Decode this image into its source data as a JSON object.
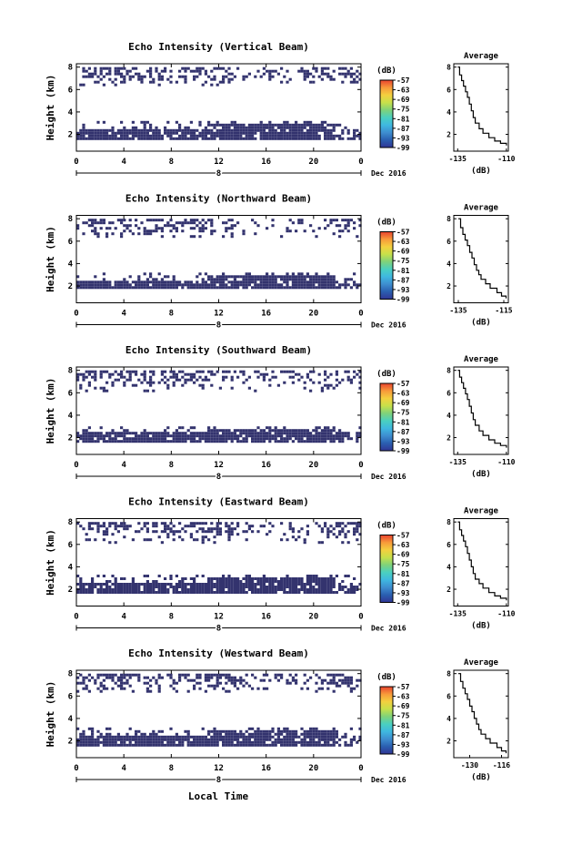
{
  "colors": {
    "echo": "#33336e",
    "axis": "#000000",
    "colorbar": [
      "#313695",
      "#2a5fb0",
      "#3e8ed0",
      "#3fb8e0",
      "#4ad0c0",
      "#7fd27a",
      "#c7e04a",
      "#f4d03f",
      "#f89a3a",
      "#e8432f"
    ]
  },
  "chart_data": [
    {
      "type": "heatmap",
      "title": "Echo Intensity (Vertical Beam)",
      "ylabel": "Height (km)",
      "x_ticks": [
        "0",
        "4",
        "8",
        "12",
        "16",
        "20",
        "0"
      ],
      "date_label": "8",
      "date_suffix": "Dec 2016",
      "y_ticks": [
        "8",
        "6",
        "4",
        "2"
      ],
      "xlim": [
        0,
        24
      ],
      "ylim": [
        0.5,
        8.3
      ],
      "colorbar_unit": "(dB)",
      "colorbar_labels": [
        "-57",
        "-63",
        "-69",
        "-75",
        "-81",
        "-87",
        "-93",
        "-99"
      ],
      "echo_layers": [
        {
          "y0": 1.7,
          "y1": 3.2,
          "x0": 0,
          "x1": 24
        },
        {
          "y0": 6.3,
          "y1": 8.0,
          "x0": 0,
          "x1": 24
        }
      ],
      "average": {
        "title": "Average",
        "xlabel": "(dB)",
        "x_ticks": [
          "-135",
          "-110"
        ],
        "y_ticks": [
          "8",
          "6",
          "4",
          "2"
        ],
        "xlim": [
          -137,
          -109
        ],
        "ylim": [
          0.5,
          8.3
        ],
        "x": [
          -135,
          -134,
          -133,
          -132,
          -131,
          -130,
          -129,
          -128,
          -127,
          -126,
          -124,
          -122,
          -119,
          -116,
          -113,
          -110
        ],
        "y": [
          8.0,
          7.3,
          6.8,
          6.3,
          5.8,
          5.3,
          4.7,
          4.1,
          3.5,
          3.0,
          2.5,
          2.1,
          1.7,
          1.4,
          1.2,
          1.0
        ]
      }
    },
    {
      "type": "heatmap",
      "title": "Echo Intensity (Northward Beam)",
      "ylabel": "Height (km)",
      "x_ticks": [
        "0",
        "4",
        "8",
        "12",
        "16",
        "20",
        "0"
      ],
      "date_label": "8",
      "date_suffix": "Dec 2016",
      "y_ticks": [
        "8",
        "6",
        "4",
        "2"
      ],
      "xlim": [
        0,
        24
      ],
      "ylim": [
        0.5,
        8.3
      ],
      "colorbar_unit": "(dB)",
      "colorbar_labels": [
        "-57",
        "-63",
        "-69",
        "-75",
        "-81",
        "-87",
        "-93",
        "-99"
      ],
      "echo_layers": [
        {
          "y0": 1.8,
          "y1": 3.2,
          "x0": 0,
          "x1": 24
        },
        {
          "y0": 6.3,
          "y1": 8.0,
          "x0": 0,
          "x1": 24
        }
      ],
      "average": {
        "title": "Average",
        "xlabel": "(dB)",
        "x_ticks": [
          "-135",
          "-115"
        ],
        "y_ticks": [
          "8",
          "6",
          "4",
          "2"
        ],
        "xlim": [
          -137,
          -113
        ],
        "ylim": [
          0.5,
          8.3
        ],
        "x": [
          -135,
          -134,
          -133,
          -132,
          -131,
          -130,
          -129,
          -128,
          -127,
          -126,
          -125,
          -123,
          -121,
          -118,
          -116,
          -114
        ],
        "y": [
          8.0,
          7.2,
          6.6,
          6.1,
          5.6,
          5.0,
          4.5,
          3.9,
          3.4,
          3.0,
          2.6,
          2.2,
          1.8,
          1.4,
          1.1,
          0.9
        ]
      }
    },
    {
      "type": "heatmap",
      "title": "Echo Intensity (Southward Beam)",
      "ylabel": "Height (km)",
      "x_ticks": [
        "0",
        "4",
        "8",
        "12",
        "16",
        "20",
        "0"
      ],
      "date_label": "8",
      "date_suffix": "Dec 2016",
      "y_ticks": [
        "8",
        "6",
        "4",
        "2"
      ],
      "xlim": [
        0,
        24
      ],
      "ylim": [
        0.5,
        8.3
      ],
      "colorbar_unit": "(dB)",
      "colorbar_labels": [
        "-57",
        "-63",
        "-69",
        "-75",
        "-81",
        "-87",
        "-93",
        "-99"
      ],
      "echo_layers": [
        {
          "y0": 1.7,
          "y1": 3.0,
          "x0": 0,
          "x1": 24
        },
        {
          "y0": 6.2,
          "y1": 8.0,
          "x0": 0,
          "x1": 24
        }
      ],
      "average": {
        "title": "Average",
        "xlabel": "(dB)",
        "x_ticks": [
          "-135",
          "-110"
        ],
        "y_ticks": [
          "8",
          "6",
          "4",
          "2"
        ],
        "xlim": [
          -137,
          -109
        ],
        "ylim": [
          0.5,
          8.3
        ],
        "x": [
          -135,
          -134,
          -133,
          -132,
          -131,
          -130,
          -129,
          -128,
          -127,
          -126,
          -124,
          -122,
          -119,
          -116,
          -113,
          -110
        ],
        "y": [
          8.0,
          7.4,
          6.9,
          6.4,
          5.9,
          5.4,
          4.8,
          4.2,
          3.6,
          3.1,
          2.6,
          2.2,
          1.8,
          1.5,
          1.3,
          1.1
        ]
      }
    },
    {
      "type": "heatmap",
      "title": "Echo Intensity (Eastward Beam)",
      "ylabel": "Height (km)",
      "x_ticks": [
        "0",
        "4",
        "8",
        "12",
        "16",
        "20",
        "0"
      ],
      "date_label": "8",
      "date_suffix": "Dec 2016",
      "y_ticks": [
        "8",
        "6",
        "4",
        "2"
      ],
      "xlim": [
        0,
        24
      ],
      "ylim": [
        0.5,
        8.3
      ],
      "colorbar_unit": "(dB)",
      "colorbar_labels": [
        "-57",
        "-63",
        "-69",
        "-75",
        "-81",
        "-87",
        "-93",
        "-99"
      ],
      "echo_layers": [
        {
          "y0": 1.7,
          "y1": 3.3,
          "x0": 0,
          "x1": 24
        },
        {
          "y0": 6.2,
          "y1": 8.0,
          "x0": 0,
          "x1": 24
        }
      ],
      "average": {
        "title": "Average",
        "xlabel": "(dB)",
        "x_ticks": [
          "-135",
          "-110"
        ],
        "y_ticks": [
          "8",
          "6",
          "4",
          "2"
        ],
        "xlim": [
          -137,
          -109
        ],
        "ylim": [
          0.5,
          8.3
        ],
        "x": [
          -135,
          -134,
          -133,
          -132,
          -131,
          -130,
          -129,
          -128,
          -127,
          -126,
          -124,
          -122,
          -119,
          -116,
          -113,
          -110
        ],
        "y": [
          8.0,
          7.3,
          6.8,
          6.3,
          5.8,
          5.2,
          4.6,
          4.0,
          3.4,
          2.9,
          2.5,
          2.1,
          1.7,
          1.4,
          1.2,
          1.0
        ]
      }
    },
    {
      "type": "heatmap",
      "title": "Echo Intensity (Westward Beam)",
      "ylabel": "Height (km)",
      "xlabel": "Local Time",
      "x_ticks": [
        "0",
        "4",
        "8",
        "12",
        "16",
        "20",
        "0"
      ],
      "date_label": "8",
      "date_suffix": "Dec 2016",
      "y_ticks": [
        "8",
        "6",
        "4",
        "2"
      ],
      "xlim": [
        0,
        24
      ],
      "ylim": [
        0.5,
        8.3
      ],
      "colorbar_unit": "(dB)",
      "colorbar_labels": [
        "-57",
        "-63",
        "-69",
        "-75",
        "-81",
        "-87",
        "-93",
        "-99"
      ],
      "echo_layers": [
        {
          "y0": 1.6,
          "y1": 3.2,
          "x0": 0,
          "x1": 24
        },
        {
          "y0": 6.3,
          "y1": 8.0,
          "x0": 0,
          "x1": 24
        }
      ],
      "average": {
        "title": "Average",
        "xlabel": "(dB)",
        "x_ticks": [
          "-130",
          "-116"
        ],
        "y_ticks": [
          "8",
          "6",
          "4",
          "2"
        ],
        "xlim": [
          -137,
          -113
        ],
        "ylim": [
          0.5,
          8.3
        ],
        "x": [
          -135,
          -134,
          -133,
          -132,
          -131,
          -130,
          -129,
          -128,
          -127,
          -126,
          -125,
          -123,
          -121,
          -118,
          -116,
          -114
        ],
        "y": [
          8.0,
          7.3,
          6.7,
          6.2,
          5.7,
          5.1,
          4.6,
          4.0,
          3.5,
          3.0,
          2.6,
          2.2,
          1.8,
          1.4,
          1.1,
          0.9
        ]
      }
    }
  ]
}
